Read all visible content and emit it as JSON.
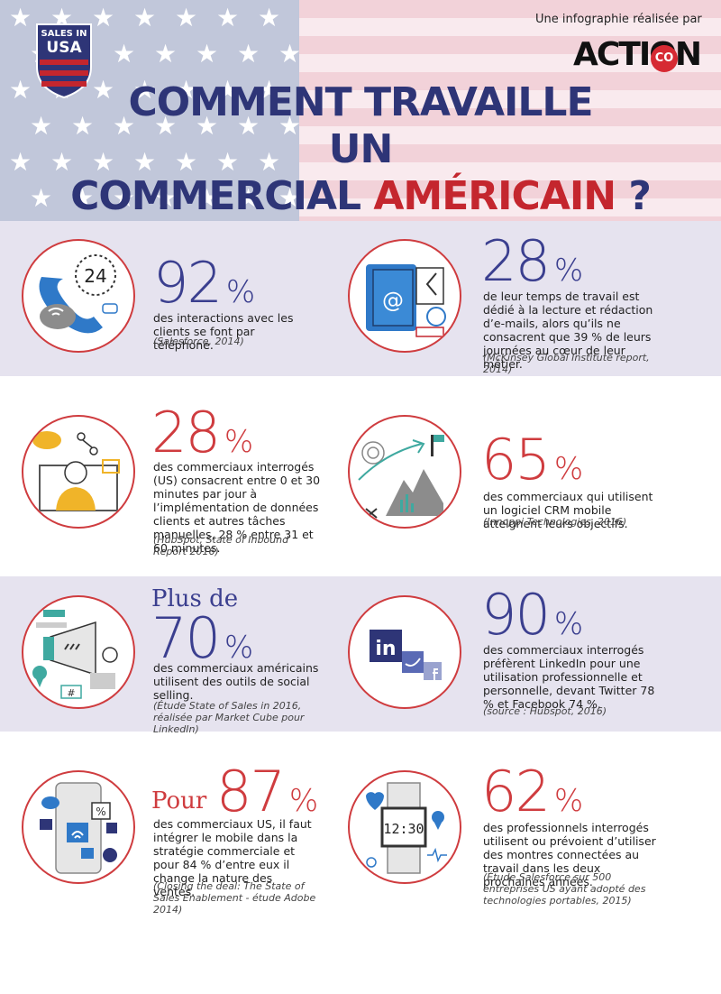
{
  "header": {
    "title_line1": "COMMENT TRAVAILLE",
    "title_line2": "UN",
    "title_line3a": "COMMERCIAL ",
    "title_line3b": "AMÉRICAIN",
    "title_line3c": " ?",
    "credit": "Une infographie réalisée par",
    "logo_text": "ACTION",
    "logo_badge": "CO",
    "badge_line1": "SALES IN",
    "badge_line2": "USA"
  },
  "stats": [
    {
      "value": "92",
      "unit": "%",
      "desc": "des interactions avec les clients se font par téléphone.",
      "source": "(Salesforce, 2014)",
      "icon": "phone-icon"
    },
    {
      "value": "28",
      "unit": "%",
      "desc": "de leur temps de travail est dédié à la lecture et rédaction d’e-mails, alors qu’ils ne consacrent que 39 % de leurs journées au cœur de leur métier.",
      "source": "(McKinsey Global Institute report, 2014)",
      "icon": "email-notebook-icon"
    },
    {
      "value": "28",
      "unit": "%",
      "desc": "des commerciaux interrogés (US) consacrent entre 0 et 30 minutes par jour à l’implémentation de données clients et autres tâches manuelles, 28 % entre 31 et 60 minutes.",
      "source": "(HubSpot, State of Inbound Report 2016)",
      "icon": "data-entry-icon"
    },
    {
      "value": "65",
      "unit": "%",
      "desc": "des commerciaux qui utilisent un logiciel CRM mobile atteignent leurs objectifs.",
      "source": "(Innoppi Technologies, 2016)",
      "icon": "growth-chart-icon"
    },
    {
      "prefix": "Plus de",
      "value": "70",
      "unit": "%",
      "desc": "des commerciaux américains utilisent des outils de social selling.",
      "source": "(Étude State of Sales in 2016, réalisée par Market Cube pour LinkedIn)",
      "icon": "megaphone-icon"
    },
    {
      "value": "90",
      "unit": "%",
      "desc": "des commerciaux interrogés préfèrent LinkedIn pour une utilisation professionnelle et personnelle, devant Twitter 78 % et Facebook 74 %.",
      "source": "(source : Hubspot, 2016)",
      "icon": "social-networks-icon"
    },
    {
      "prefix": "Pour",
      "value": "87",
      "unit": "%",
      "desc": "des commerciaux US, il faut intégrer le mobile dans la stratégie commerciale et pour 84 % d’entre eux il change la nature des ventes.",
      "source": "(Closing the deal: The State of Sales Enablement - étude Adobe 2014)",
      "icon": "smartphone-icon"
    },
    {
      "value": "62",
      "unit": "%",
      "desc": "des professionnels interrogés utilisent ou prévoient d’utiliser des montres connectées au travail dans les deux prochaines années.",
      "source": "(Étude Salesforce sur 500 entreprises US ayant adopté des technologies portables, 2015)",
      "icon": "smartwatch-icon"
    }
  ],
  "icon_text": {
    "clock": "24",
    "watch": "12:30",
    "linkedin": "in",
    "hashtag": "#",
    "percent": "%",
    "at": "@"
  },
  "colors": {
    "navy": "#2e3577",
    "red": "#c4262e",
    "band": "#e6e3ef"
  }
}
